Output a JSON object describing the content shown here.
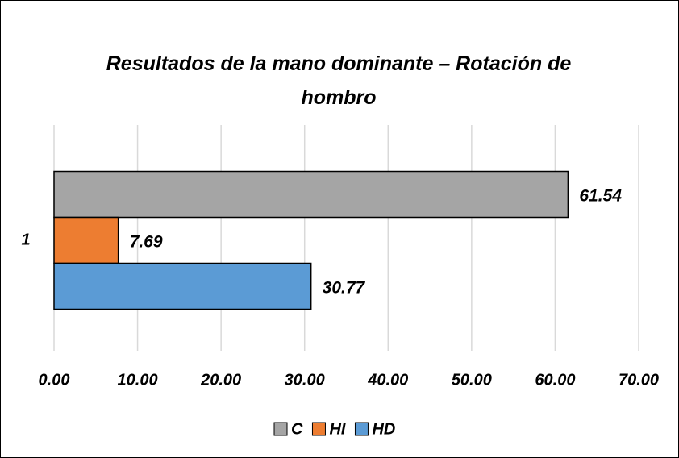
{
  "chart_data": {
    "type": "hbar",
    "title": "Resultados de la mano dominante – Rotación de hombro",
    "categories": [
      "1"
    ],
    "series": [
      {
        "name": "C",
        "color": "#a5a5a5",
        "values": [
          61.54
        ]
      },
      {
        "name": "HI",
        "color": "#ed7d31",
        "values": [
          7.69
        ]
      },
      {
        "name": "HD",
        "color": "#5b9bd5",
        "values": [
          30.77
        ]
      }
    ],
    "xlim": [
      0,
      70
    ],
    "xticks": [
      {
        "value": 0,
        "label": "0.00"
      },
      {
        "value": 10,
        "label": "10.00"
      },
      {
        "value": 20,
        "label": "20.00"
      },
      {
        "value": 30,
        "label": "30.00"
      },
      {
        "value": 40,
        "label": "40.00"
      },
      {
        "value": 50,
        "label": "50.00"
      },
      {
        "value": 60,
        "label": "60.00"
      },
      {
        "value": 70,
        "label": "70.00"
      }
    ],
    "grid": true,
    "legend": "bottom"
  }
}
